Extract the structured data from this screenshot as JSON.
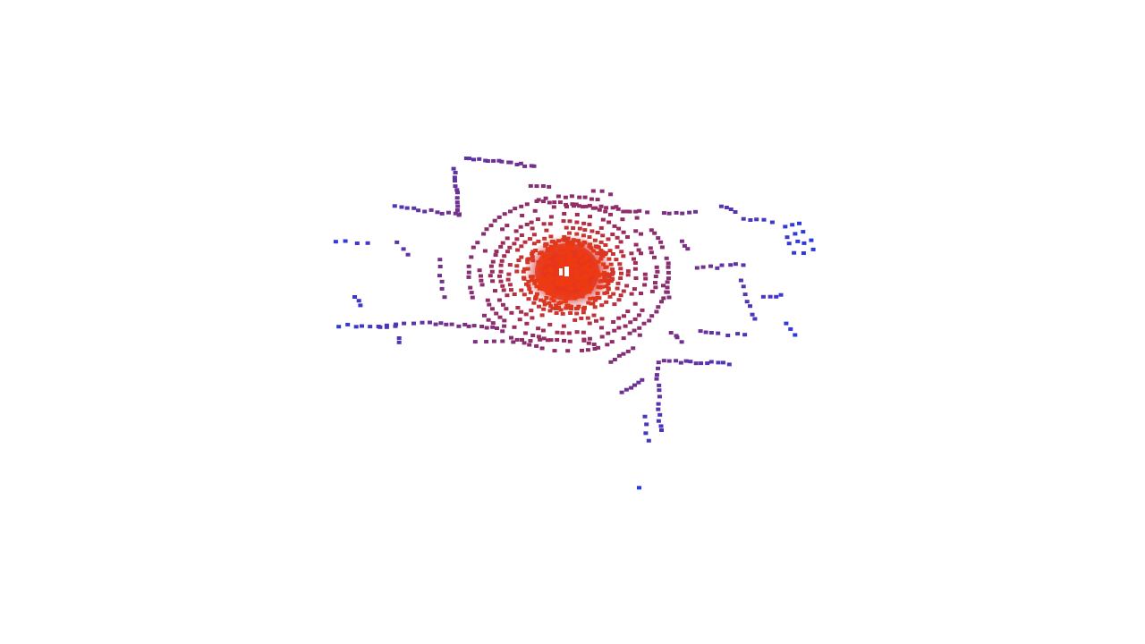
{
  "viewer": {
    "background": "#ffffff",
    "colormap": {
      "near": "#ee3a10",
      "mid": "#9a2c5e",
      "far": "#1b3cf5"
    },
    "sensor_icon": "lidar-sensor-icon"
  }
}
